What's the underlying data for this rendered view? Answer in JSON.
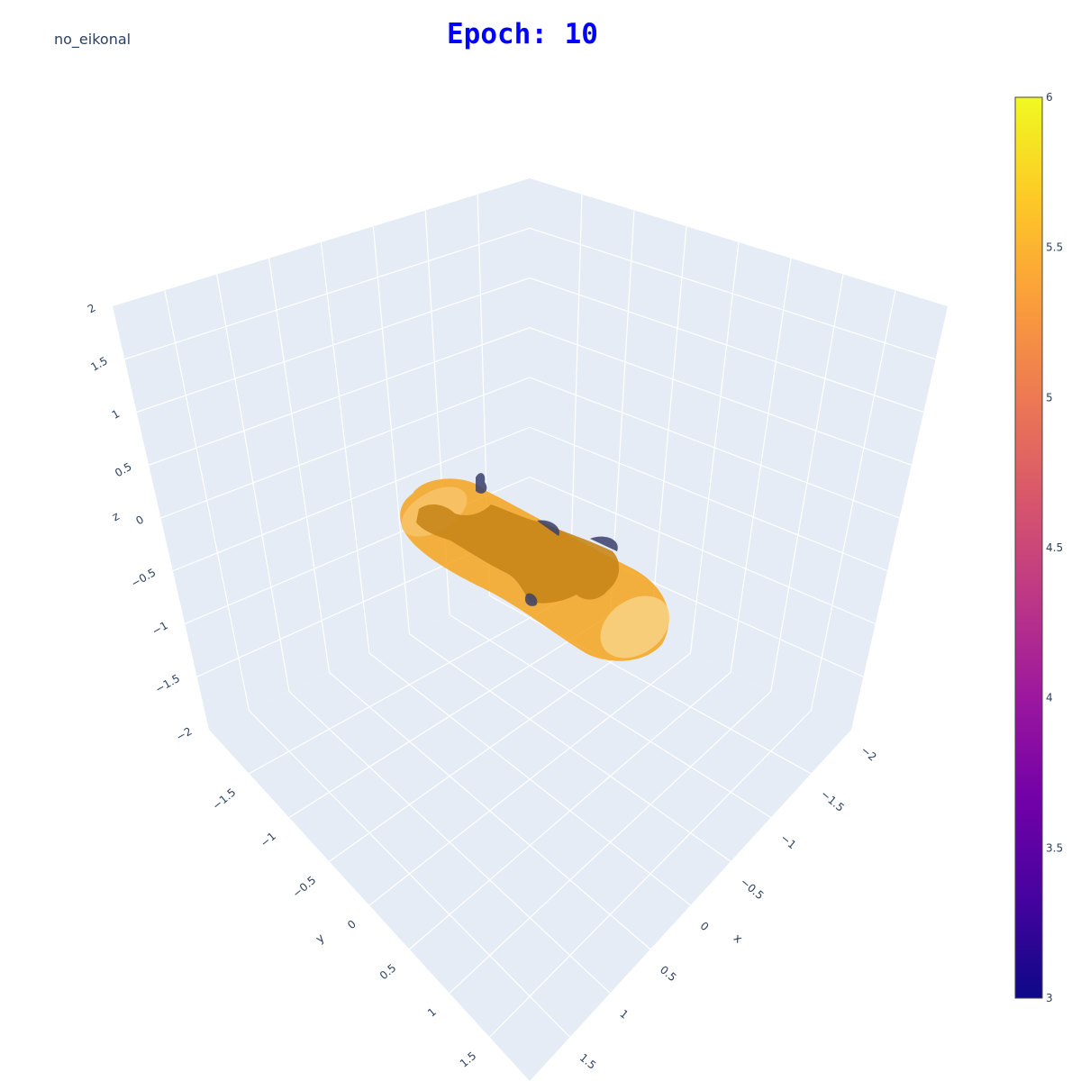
{
  "header": {
    "corner_label": "no_eikonal",
    "title": "Epoch: 10"
  },
  "colors": {
    "pane_fill": "#e5ecf6",
    "grid": "#ffffff",
    "tick_text": "#2a3f5f",
    "title": "#0000ff",
    "surface_main": "#f5a623",
    "surface_light": "#f7c36a",
    "inner_shape": "#3a3f6b"
  },
  "chart_data": {
    "type": "surface",
    "title": "Epoch: 10",
    "axes": {
      "x": {
        "label": "x",
        "range": [
          -2,
          2
        ],
        "ticks": [
          "−2",
          "−1.5",
          "−1",
          "−0.5",
          "0",
          "0.5",
          "1",
          "1.5"
        ]
      },
      "y": {
        "label": "y",
        "range": [
          -2,
          2
        ],
        "ticks": [
          "−1.5",
          "−1",
          "−0.5",
          "0",
          "0.5",
          "1",
          "1.5"
        ]
      },
      "z": {
        "label": "z",
        "range": [
          -2,
          2
        ],
        "ticks": [
          "−2",
          "−1.5",
          "−1",
          "−0.5",
          "0",
          "0.5",
          "1",
          "1.5",
          "2"
        ]
      }
    },
    "colorbar": {
      "range": [
        3,
        6
      ],
      "ticks": [
        "3",
        "3.5",
        "4",
        "4.5",
        "5",
        "5.5",
        "6"
      ],
      "colorscale": [
        "#0d0887",
        "#46039f",
        "#7201a8",
        "#9c179e",
        "#bd3786",
        "#d8576b",
        "#ed7953",
        "#fb9f3a",
        "#fdca26",
        "#f0f921"
      ]
    },
    "grid": true
  }
}
